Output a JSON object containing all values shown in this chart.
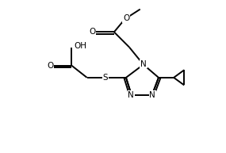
{
  "bg_color": "#ffffff",
  "line_color": "#000000",
  "lw": 1.4,
  "fs": 7.5,
  "xlim": [
    0,
    10
  ],
  "ylim": [
    0,
    7
  ]
}
